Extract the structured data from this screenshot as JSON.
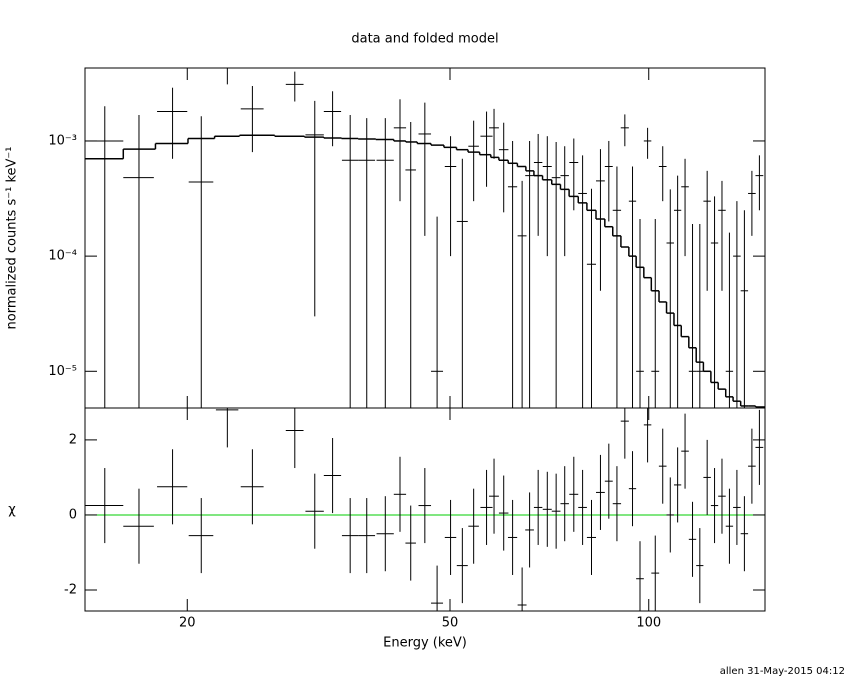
{
  "title": "data and folded model",
  "footer": "allen 31-May-2015 04:12",
  "chart_data": [
    {
      "type": "errorbar",
      "ylabel": "normalized counts s⁻¹ keV⁻¹",
      "log_x": true,
      "log_y": true,
      "xlim": [
        14,
        150
      ],
      "ylim": [
        4.8e-06,
        0.0043
      ],
      "yticks": [
        {
          "value": 0.001,
          "label": "10⁻³"
        },
        {
          "value": 0.0001,
          "label": "10⁻⁴"
        },
        {
          "value": 1e-05,
          "label": "10⁻⁵"
        }
      ],
      "data": {
        "color": "#000000",
        "x": [
          15.0,
          16.9,
          19.0,
          21.0,
          23.0,
          25.1,
          29.1,
          31.2,
          33.2,
          35.3,
          37.4,
          39.9,
          42.0,
          43.6,
          45.8,
          47.8,
          50.1,
          52.2,
          54.3,
          56.8,
          58.3,
          60.3,
          62.2,
          64.3,
          66.0,
          68.0,
          70.2,
          72.4,
          74.6,
          77.0,
          79.4,
          81.9,
          84.5,
          87.0,
          89.5,
          92.0,
          94.5,
          97.0,
          99.6,
          102.3,
          105.0,
          107.8,
          110.6,
          113.5,
          116.5,
          119.5,
          122.6,
          125.8,
          129.1,
          132.5,
          136.0,
          139.6,
          143.3,
          147.1
        ],
        "xerr": [
          1.0,
          0.9,
          1.0,
          0.9,
          0.9,
          1.0,
          0.9,
          1.0,
          1.0,
          1.0,
          1.1,
          1.2,
          0.9,
          0.8,
          1.0,
          1.0,
          1.0,
          1.0,
          1.0,
          1.2,
          1.0,
          1.0,
          1.0,
          1.0,
          1.0,
          1.0,
          1.1,
          1.1,
          1.1,
          1.2,
          1.2,
          1.3,
          1.3,
          1.2,
          1.3,
          1.3,
          1.2,
          1.3,
          1.3,
          1.4,
          1.4,
          1.4,
          1.4,
          1.5,
          1.5,
          1.5,
          1.6,
          1.6,
          1.7,
          1.7,
          1.8,
          1.8,
          1.9,
          2.0
        ],
        "values": [
          0.001,
          0.00048,
          0.0018,
          0.00044,
          0.0043,
          0.0019,
          0.0031,
          0.00113,
          0.0018,
          0.00068,
          0.00068,
          0.00068,
          0.0013,
          0.00056,
          0.00115,
          1e-05,
          0.0006,
          0.0002,
          0.0009,
          0.0011,
          0.0013,
          0.00084,
          0.0004,
          0.00015,
          0.0005,
          0.00065,
          0.0006,
          0.00048,
          0.0005,
          0.00065,
          0.00035,
          8.5e-05,
          0.00045,
          0.0006,
          0.00025,
          0.0013,
          0.0003,
          1e-05,
          0.001,
          1e-05,
          0.0006,
          0.00013,
          0.00025,
          0.0004,
          1e-05,
          1e-05,
          0.0003,
          0.00013,
          0.00025,
          1e-05,
          0.0001,
          5e-05,
          0.00035,
          0.0005
        ],
        "errors": [
          0.001,
          0.0012,
          0.0011,
          0.0012,
          0.0012,
          0.0011,
          0.0009,
          0.0011,
          0.0009,
          0.001,
          0.0009,
          0.0009,
          0.001,
          0.0009,
          0.001,
          0.00021,
          0.0005,
          0.0005,
          0.0006,
          0.0007,
          0.0006,
          0.0006,
          0.0006,
          0.0003,
          0.0005,
          0.0005,
          0.0005,
          0.0005,
          0.0004,
          0.0004,
          0.0004,
          0.0003,
          0.0004,
          0.0004,
          0.00035,
          0.0004,
          0.0003,
          0.0002,
          0.0003,
          0.0002,
          0.0003,
          0.00025,
          0.00025,
          0.0003,
          0.00018,
          0.00018,
          0.00025,
          0.0002,
          0.0002,
          0.00015,
          0.0002,
          0.0002,
          0.0002,
          0.00025
        ]
      },
      "model": {
        "color": "#000000",
        "values": [
          0.0007,
          0.00085,
          0.00095,
          0.00105,
          0.0011,
          0.00112,
          0.0011,
          0.00108,
          0.00106,
          0.00105,
          0.00104,
          0.00103,
          0.001,
          0.00098,
          0.00095,
          0.00092,
          0.00088,
          0.00084,
          0.0008,
          0.00076,
          0.00072,
          0.00068,
          0.00064,
          0.0006,
          0.00055,
          0.0005,
          0.00046,
          0.00042,
          0.00038,
          0.00033,
          0.00029,
          0.00025,
          0.00021,
          0.00018,
          0.00015,
          0.00012,
          0.0001,
          8e-05,
          6.5e-05,
          5e-05,
          4e-05,
          3.2e-05,
          2.5e-05,
          2e-05,
          1.6e-05,
          1.2e-05,
          1e-05,
          8e-06,
          7e-06,
          6e-06,
          5.5e-06,
          5e-06,
          5e-06,
          4.9e-06
        ]
      }
    },
    {
      "type": "errorbar",
      "xlabel": "Energy (keV)",
      "ylabel": "χ",
      "log_x": true,
      "log_y": false,
      "xlim": [
        14,
        150
      ],
      "ylim": [
        -2.56,
        2.85
      ],
      "xticks": [
        20,
        50,
        100
      ],
      "yticks": [
        -2,
        0,
        2
      ],
      "reference_line": {
        "value": 0,
        "color": "#00cc00"
      },
      "data": {
        "color": "#000000",
        "x": [
          15.0,
          16.9,
          19.0,
          21.0,
          23.0,
          25.1,
          29.1,
          31.2,
          33.2,
          35.3,
          37.4,
          39.9,
          42.0,
          43.6,
          45.8,
          47.8,
          50.1,
          52.2,
          54.3,
          56.8,
          58.3,
          60.3,
          62.2,
          64.3,
          66.0,
          68.0,
          70.2,
          72.4,
          74.6,
          77.0,
          79.4,
          81.9,
          84.5,
          87.0,
          89.5,
          92.0,
          94.5,
          97.0,
          99.6,
          102.3,
          105.0,
          107.8,
          110.6,
          113.5,
          116.5,
          119.5,
          122.6,
          125.8,
          129.1,
          132.5,
          136.0,
          139.6,
          143.3,
          147.1
        ],
        "xerr": [
          1.0,
          0.9,
          1.0,
          0.9,
          0.9,
          1.0,
          0.9,
          1.0,
          1.0,
          1.0,
          1.1,
          1.2,
          0.9,
          0.8,
          1.0,
          1.0,
          1.0,
          1.0,
          1.0,
          1.2,
          1.0,
          1.0,
          1.0,
          1.0,
          1.0,
          1.0,
          1.1,
          1.1,
          1.1,
          1.2,
          1.2,
          1.3,
          1.3,
          1.2,
          1.3,
          1.3,
          1.2,
          1.3,
          1.3,
          1.4,
          1.4,
          1.4,
          1.4,
          1.5,
          1.5,
          1.5,
          1.6,
          1.6,
          1.7,
          1.7,
          1.8,
          1.8,
          1.9,
          2.0
        ],
        "values": [
          0.25,
          -0.3,
          0.75,
          -0.55,
          2.8,
          0.75,
          2.25,
          0.1,
          1.05,
          -0.55,
          -0.55,
          -0.5,
          0.55,
          -0.75,
          0.25,
          -2.35,
          -0.6,
          -1.35,
          -0.3,
          0.2,
          0.5,
          0.05,
          -0.6,
          -2.4,
          -0.4,
          0.2,
          0.15,
          0.1,
          0.3,
          0.55,
          0.2,
          -0.6,
          0.6,
          0.9,
          0.3,
          2.5,
          0.7,
          -1.7,
          2.4,
          -1.55,
          1.3,
          0.0,
          0.8,
          1.7,
          -0.65,
          -1.35,
          1.0,
          0.25,
          0.5,
          -0.3,
          0.2,
          -0.5,
          1.3,
          1.8
        ],
        "errors": [
          1,
          1,
          1,
          1,
          1,
          1,
          1,
          1,
          1,
          1,
          1,
          1,
          1,
          1,
          1,
          1,
          1,
          1,
          1,
          1,
          1,
          1,
          1,
          1,
          1,
          1,
          1,
          1,
          1,
          1,
          1,
          1,
          1,
          1,
          1,
          1,
          1,
          1,
          1,
          1,
          1,
          1,
          1,
          1,
          1,
          1,
          1,
          1,
          1,
          1,
          1,
          1,
          1,
          1
        ]
      }
    }
  ]
}
